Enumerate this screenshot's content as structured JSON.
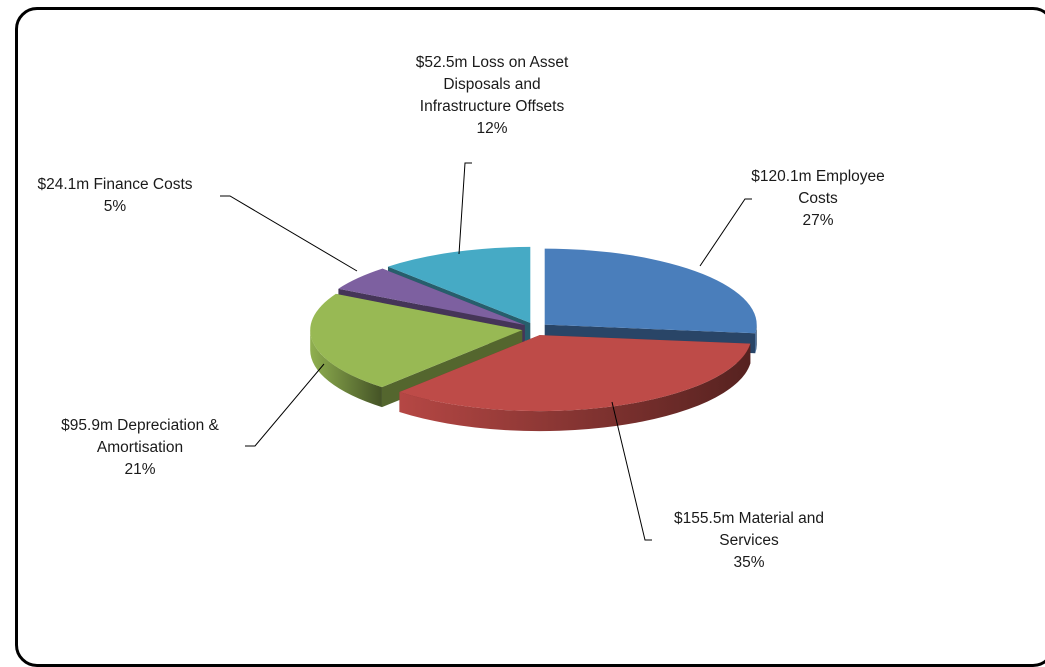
{
  "chart_data": {
    "type": "pie",
    "style": "3d-exploded",
    "legend": "none",
    "slices": [
      {
        "name": "Employee Costs",
        "lines": [
          "$120.1m Employee",
          "Costs",
          "27%"
        ],
        "value": 120.1,
        "percent": 27,
        "color": "#4a7ebb"
      },
      {
        "name": "Material and Services",
        "lines": [
          "$155.5m Material and",
          "Services",
          "35%"
        ],
        "value": 155.5,
        "percent": 35,
        "color": "#be4b48"
      },
      {
        "name": "Depreciation & Amortisation",
        "lines": [
          "$95.9m Depreciation &",
          "Amortisation",
          "21%"
        ],
        "value": 95.9,
        "percent": 21,
        "color": "#98b954"
      },
      {
        "name": "Finance Costs",
        "lines": [
          "$24.1m Finance Costs",
          "5%"
        ],
        "value": 24.1,
        "percent": 5,
        "color": "#7d60a0"
      },
      {
        "name": "Loss on Asset Disposals and Infrastructure Offsets",
        "lines": [
          "$52.5m Loss on Asset",
          "Disposals and",
          "Infrastructure Offsets",
          "12%"
        ],
        "value": 52.5,
        "percent": 12,
        "color": "#46aac5"
      }
    ]
  }
}
